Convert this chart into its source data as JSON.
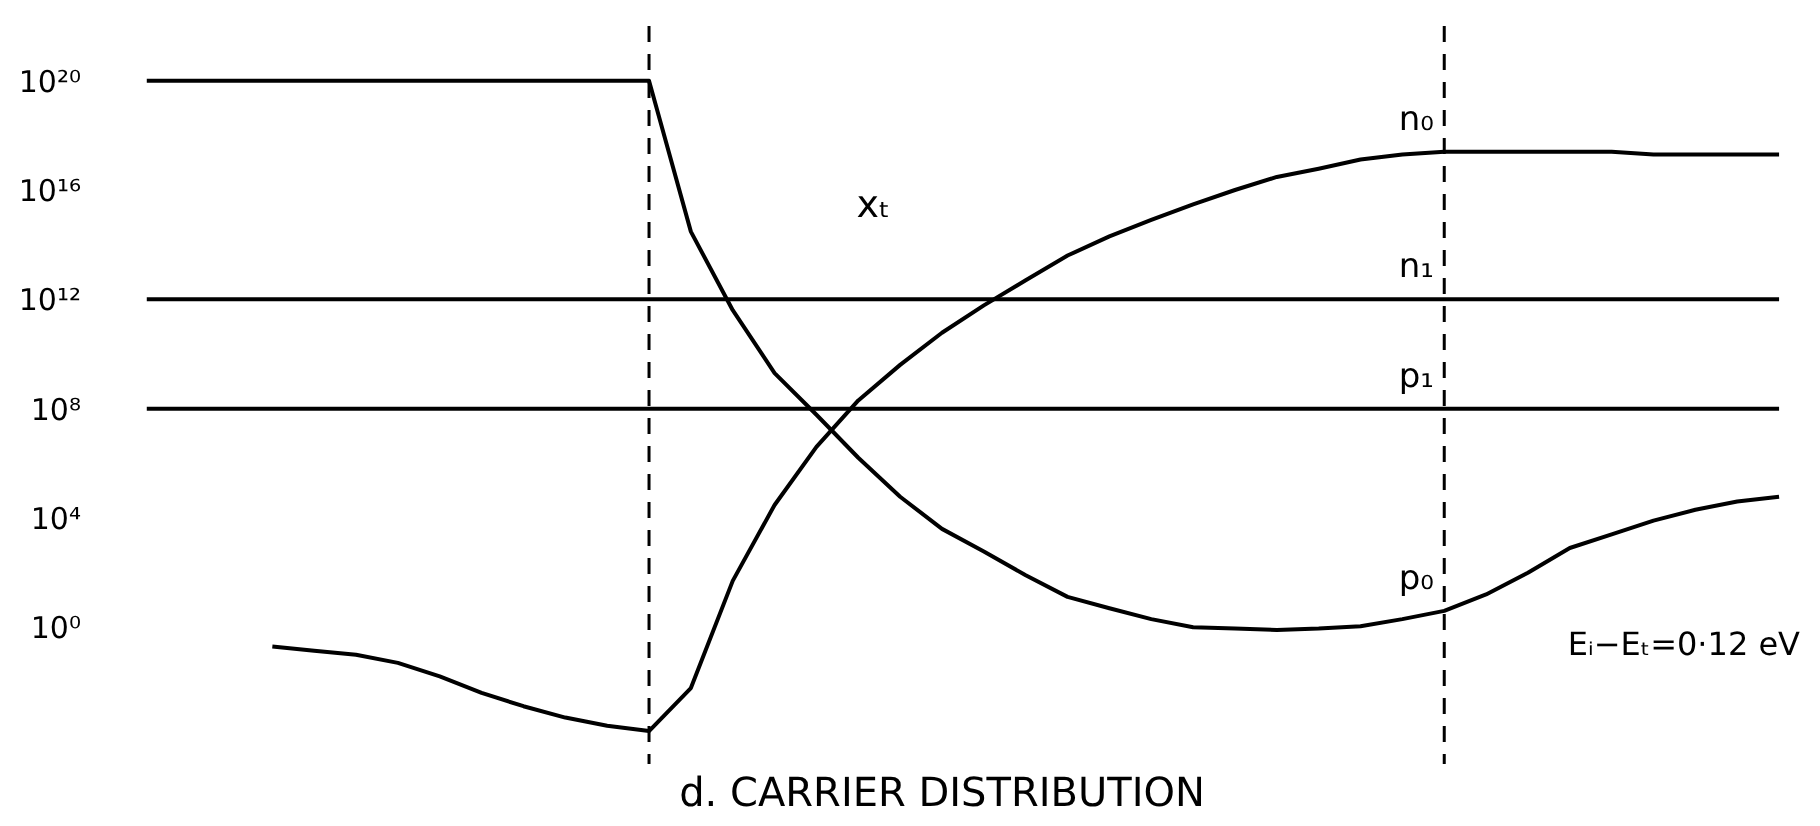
{
  "chart_data": {
    "type": "line",
    "title": "d.  CARRIER DISTRIBUTION",
    "log": "y",
    "grid": false,
    "tick_labels": "y",
    "ylim": [
      1e-05,
      1e+22
    ],
    "categories": [
      null,
      null,
      null,
      null,
      null,
      null,
      null,
      null,
      null,
      null,
      null,
      null,
      null,
      null,
      null,
      null,
      null,
      null,
      null,
      null,
      null,
      null,
      null,
      null,
      null,
      null,
      null,
      null,
      null,
      null,
      null,
      null,
      null,
      null,
      null,
      null,
      null,
      null,
      null,
      null,
      null
    ],
    "yticks": [
      {
        "value": 1,
        "label": "10⁰"
      },
      {
        "value": 10000.0,
        "label": "10⁴"
      },
      {
        "value": 100000000.0,
        "label": "10⁸"
      },
      {
        "value": 1000000000000.0,
        "label": "10¹²"
      },
      {
        "value": 1e+16,
        "label": "10¹⁶"
      },
      {
        "value": 1e+20,
        "label": "10²⁰"
      }
    ],
    "series": [
      {
        "name": "n₀",
        "color": "#000000",
        "values": [
          null,
          null,
          null,
          null,
          0.2,
          0.14,
          0.1,
          0.05,
          0.016,
          0.004,
          0.0013,
          0.0005,
          0.00025,
          0.00016,
          0.006,
          50,
          30000.0,
          4000000.0,
          200000000.0,
          4000000000.0,
          60000000000.0,
          600000000000.0,
          5000000000000.0,
          40000000000000.0,
          200000000000000.0,
          800000000000000.0,
          3000000000000000.0,
          1e+16,
          3e+16,
          6e+16,
          1.3e+17,
          2e+17,
          2.5e+17,
          2.5e+17,
          2.5e+17,
          2.5e+17,
          2.5e+17,
          2e+17,
          2e+17,
          2e+17,
          2e+17
        ]
      },
      {
        "name": "n₁",
        "color": "#000000",
        "values": [
          null,
          1000000000000.0,
          1000000000000.0,
          1000000000000.0,
          1000000000000.0,
          1000000000000.0,
          1000000000000.0,
          1000000000000.0,
          1000000000000.0,
          1000000000000.0,
          1000000000000.0,
          1000000000000.0,
          1000000000000.0,
          1000000000000.0,
          1000000000000.0,
          1000000000000.0,
          1000000000000.0,
          1000000000000.0,
          1000000000000.0,
          1000000000000.0,
          1000000000000.0,
          1000000000000.0,
          1000000000000.0,
          1000000000000.0,
          1000000000000.0,
          1000000000000.0,
          1000000000000.0,
          1000000000000.0,
          1000000000000.0,
          1000000000000.0,
          1000000000000.0,
          1000000000000.0,
          1000000000000.0,
          1000000000000.0,
          1000000000000.0,
          1000000000000.0,
          1000000000000.0,
          1000000000000.0,
          1000000000000.0,
          1000000000000.0,
          1000000000000.0
        ]
      },
      {
        "name": "p₁",
        "color": "#000000",
        "values": [
          null,
          100000000.0,
          100000000.0,
          100000000.0,
          100000000.0,
          100000000.0,
          100000000.0,
          100000000.0,
          100000000.0,
          100000000.0,
          100000000.0,
          100000000.0,
          100000000.0,
          100000000.0,
          100000000.0,
          100000000.0,
          100000000.0,
          100000000.0,
          100000000.0,
          100000000.0,
          100000000.0,
          100000000.0,
          100000000.0,
          100000000.0,
          100000000.0,
          100000000.0,
          100000000.0,
          100000000.0,
          100000000.0,
          100000000.0,
          100000000.0,
          100000000.0,
          100000000.0,
          100000000.0,
          100000000.0,
          100000000.0,
          100000000.0,
          100000000.0,
          100000000.0,
          100000000.0,
          100000000.0
        ]
      },
      {
        "name": "p₀",
        "color": "#000000",
        "values": [
          null,
          1e+20,
          1e+20,
          1e+20,
          1e+20,
          1e+20,
          1e+20,
          1e+20,
          1e+20,
          1e+20,
          1e+20,
          1e+20,
          1e+20,
          1e+20,
          300000000000000.0,
          400000000000.0,
          2000000000.0,
          60000000.0,
          1600000.0,
          60000.0,
          4000.0,
          600,
          80,
          13,
          5,
          2,
          1,
          0.9,
          0.8,
          0.9,
          1.1,
          2,
          4,
          16,
          100,
          800,
          2500,
          8000,
          20000.0,
          40000.0,
          60000.0
        ]
      }
    ],
    "annotations": [
      "xₜ",
      "Eᵢ−Eₜ=0·12 eV"
    ]
  }
}
